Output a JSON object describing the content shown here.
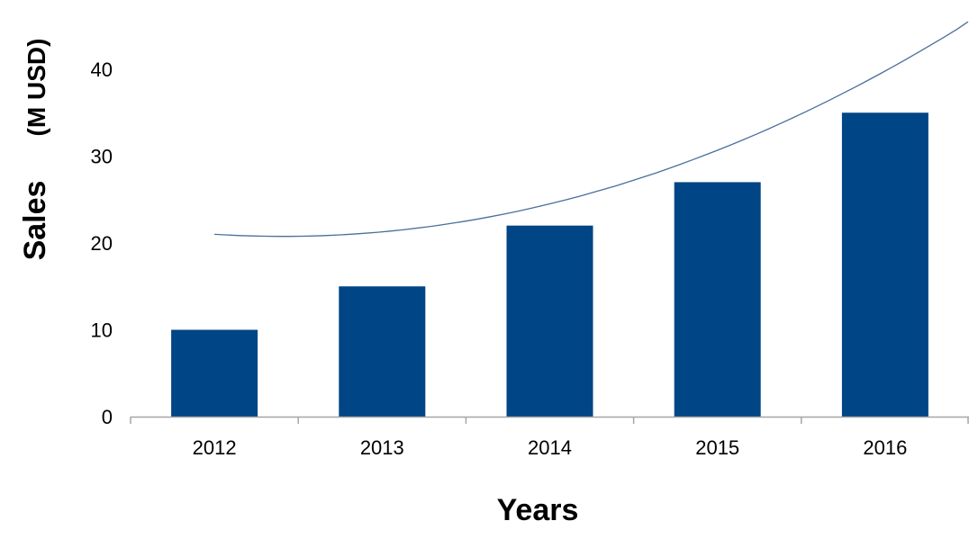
{
  "chart_data": {
    "type": "bar",
    "title": "",
    "xlabel": "Years",
    "ylabel": "Sales",
    "ylabel_unit": "(M USD)",
    "categories": [
      "2012",
      "2013",
      "2014",
      "2015",
      "2016"
    ],
    "series": [
      {
        "values": [
          10,
          15,
          22,
          27,
          35
        ],
        "color": "#004586"
      }
    ],
    "trendline": {
      "type": "polynomial",
      "color": "#4a6f9c",
      "values": [
        21,
        21.8,
        24.5,
        30,
        39.8
      ]
    },
    "ylim": [
      0,
      45
    ],
    "yticks": [
      0,
      10,
      20,
      30,
      40
    ],
    "grid": false,
    "legend": "none"
  }
}
